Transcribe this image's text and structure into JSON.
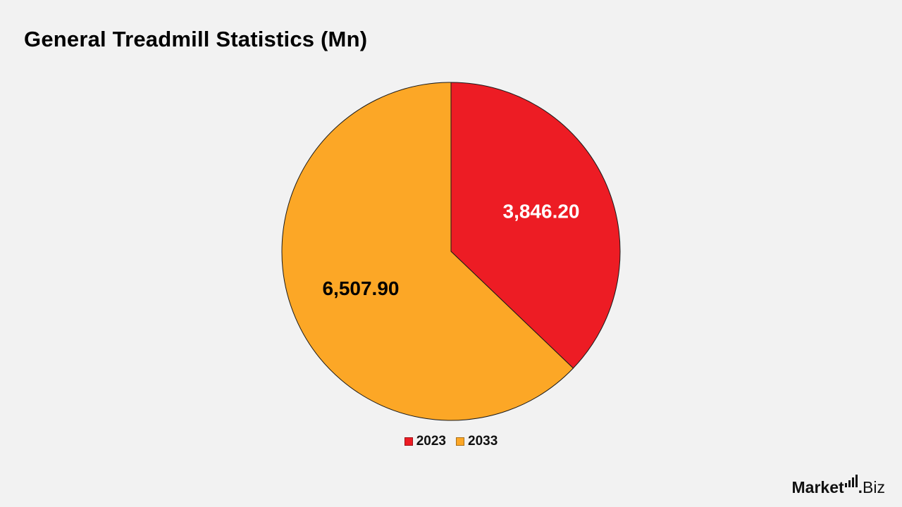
{
  "chart_data": {
    "type": "pie",
    "title": "General Treadmill Statistics (Mn)",
    "categories": [
      "2023",
      "2033"
    ],
    "values": [
      3846.2,
      6507.9
    ],
    "data_labels": [
      "3,846.20",
      "6,507.90"
    ],
    "colors": [
      "#ed1c24",
      "#fca726"
    ],
    "label_colors": [
      "#ffffff",
      "#000000"
    ],
    "legend_position": "bottom",
    "start_angle": "12 o'clock",
    "direction": "clockwise"
  },
  "brand": {
    "name_left": "Market",
    "name_right": "Biz",
    "dot": "."
  }
}
